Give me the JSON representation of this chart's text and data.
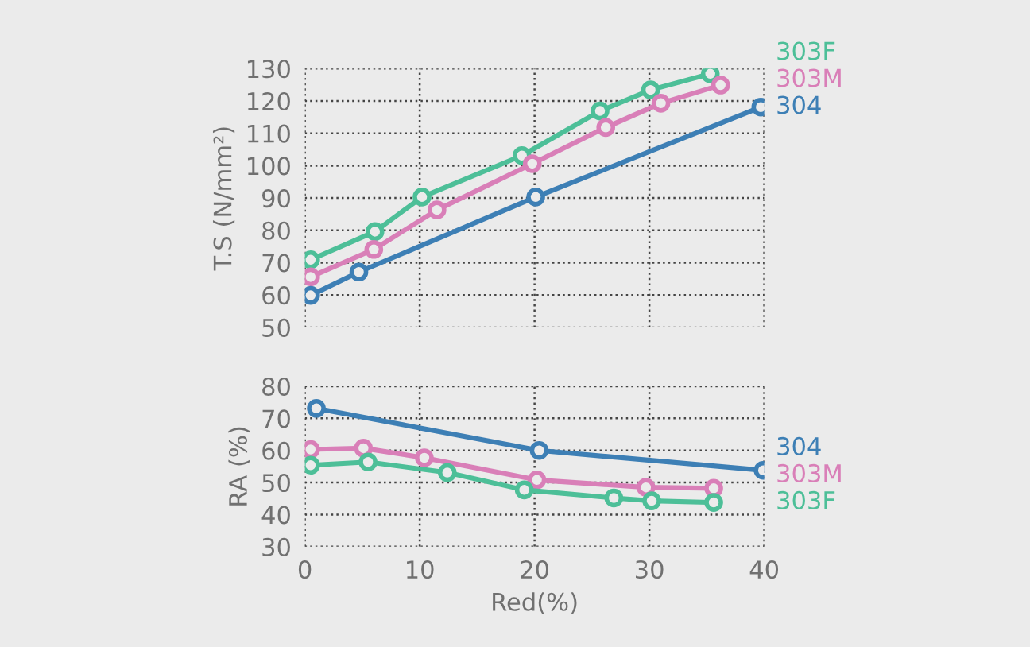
{
  "chart_data": [
    {
      "type": "line",
      "ylabel": "T.S (N/mm²)",
      "xlim": [
        0,
        40
      ],
      "xticks": [
        0,
        10,
        20,
        30,
        40
      ],
      "ylim": [
        50,
        130
      ],
      "yticks": [
        50,
        60,
        70,
        80,
        90,
        100,
        110,
        120,
        130
      ],
      "grid": true,
      "marker": "circle",
      "line_style": "solid",
      "tick_labels": "y",
      "series": [
        {
          "name": "303F",
          "color": "#4dbf98",
          "x": [
            0.5,
            6.1,
            10.2,
            18.9,
            25.7,
            30.1,
            35.3
          ],
          "values": [
            70.9,
            79.6,
            90.3,
            103.1,
            116.9,
            123.4,
            128.4
          ]
        },
        {
          "name": "303M",
          "color": "#d97fb8",
          "x": [
            0.5,
            6.0,
            11.5,
            19.8,
            26.2,
            31.0,
            36.2
          ],
          "values": [
            65.6,
            74.1,
            86.3,
            100.6,
            111.8,
            119.3,
            124.9
          ]
        },
        {
          "name": "304",
          "color": "#3d7fb5",
          "x": [
            0.5,
            4.7,
            20.1,
            39.7
          ],
          "values": [
            59.9,
            67.1,
            90.3,
            118.1
          ]
        }
      ]
    },
    {
      "type": "line",
      "xlabel": "Red(%)",
      "ylabel": "RA (%)",
      "xlim": [
        0,
        40
      ],
      "xticks": [
        0,
        10,
        20,
        30,
        40
      ],
      "ylim": [
        30,
        80
      ],
      "yticks": [
        30,
        40,
        50,
        60,
        70,
        80
      ],
      "grid": true,
      "marker": "circle",
      "line_style": "solid",
      "series": [
        {
          "name": "304",
          "color": "#3d7fb5",
          "x": [
            1.0,
            20.4,
            39.9
          ],
          "values": [
            73.1,
            60.0,
            53.8
          ]
        },
        {
          "name": "303M",
          "color": "#d97fb8",
          "x": [
            0.5,
            5.1,
            10.4,
            20.2,
            29.7,
            35.6
          ],
          "values": [
            60.3,
            60.7,
            57.7,
            50.8,
            48.5,
            48.2
          ]
        },
        {
          "name": "303F",
          "color": "#4dbf98",
          "x": [
            0.5,
            5.5,
            12.4,
            19.1,
            26.9,
            30.2,
            35.6
          ],
          "values": [
            55.4,
            56.4,
            53.1,
            47.7,
            45.2,
            44.3,
            43.8
          ]
        }
      ]
    }
  ]
}
